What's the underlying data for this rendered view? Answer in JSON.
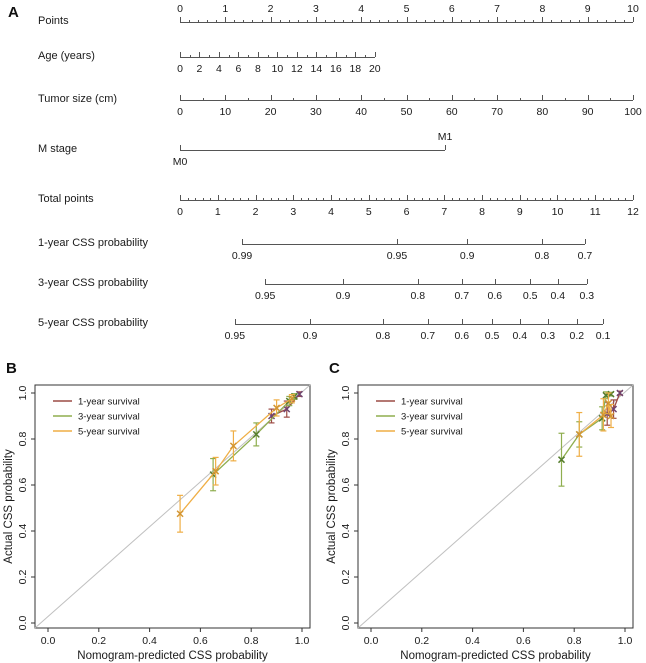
{
  "figure": {
    "panel_a_label": "A",
    "panel_b_label": "B",
    "panel_c_label": "C",
    "colors": {
      "axis": "#555555",
      "reference_line": "#c0c0c0",
      "text": "#1a1a1a"
    }
  },
  "nomogram": {
    "rows": [
      {
        "id": "points",
        "label": "Points",
        "y": 22,
        "side": "above",
        "line": [
          0,
          1
        ],
        "minor_between": 4,
        "ticks": [
          {
            "f": 0,
            "t": "0"
          },
          {
            "f": 0.1,
            "t": "1"
          },
          {
            "f": 0.2,
            "t": "2"
          },
          {
            "f": 0.3,
            "t": "3"
          },
          {
            "f": 0.4,
            "t": "4"
          },
          {
            "f": 0.5,
            "t": "5"
          },
          {
            "f": 0.6,
            "t": "6"
          },
          {
            "f": 0.7,
            "t": "7"
          },
          {
            "f": 0.8,
            "t": "8"
          },
          {
            "f": 0.9,
            "t": "9"
          },
          {
            "f": 1,
            "t": "10"
          }
        ]
      },
      {
        "id": "age",
        "label": "Age (years)",
        "y": 57,
        "side": "below",
        "line": [
          0,
          0.43
        ],
        "minor_between": 1,
        "ticks": [
          {
            "f": 0,
            "t": "0"
          },
          {
            "f": 0.043,
            "t": "2"
          },
          {
            "f": 0.086,
            "t": "4"
          },
          {
            "f": 0.129,
            "t": "6"
          },
          {
            "f": 0.172,
            "t": "8"
          },
          {
            "f": 0.215,
            "t": "10"
          },
          {
            "f": 0.258,
            "t": "12"
          },
          {
            "f": 0.301,
            "t": "14"
          },
          {
            "f": 0.344,
            "t": "16"
          },
          {
            "f": 0.387,
            "t": "18"
          },
          {
            "f": 0.43,
            "t": "20"
          }
        ]
      },
      {
        "id": "tumor-size",
        "label": "Tumor size (cm)",
        "y": 100,
        "side": "below",
        "line": [
          0,
          1
        ],
        "minor_between": 1,
        "ticks": [
          {
            "f": 0,
            "t": "0"
          },
          {
            "f": 0.1,
            "t": "10"
          },
          {
            "f": 0.2,
            "t": "20"
          },
          {
            "f": 0.3,
            "t": "30"
          },
          {
            "f": 0.4,
            "t": "40"
          },
          {
            "f": 0.5,
            "t": "50"
          },
          {
            "f": 0.6,
            "t": "60"
          },
          {
            "f": 0.7,
            "t": "70"
          },
          {
            "f": 0.8,
            "t": "80"
          },
          {
            "f": 0.9,
            "t": "90"
          },
          {
            "f": 1,
            "t": "100"
          }
        ]
      },
      {
        "id": "m-stage",
        "label": "M stage",
        "y": 150,
        "side": "below",
        "line": [
          0,
          0.585
        ],
        "minor_between": 0,
        "ticks": [
          {
            "f": 0,
            "t": "M0",
            "pos": "below"
          },
          {
            "f": 0.585,
            "t": "M1",
            "pos": "above"
          }
        ]
      },
      {
        "id": "total-points",
        "label": "Total points",
        "y": 200,
        "side": "below",
        "line": [
          0,
          1
        ],
        "minor_between": 4,
        "ticks": [
          {
            "f": 0,
            "t": "0"
          },
          {
            "f": 0.0833,
            "t": "1"
          },
          {
            "f": 0.1667,
            "t": "2"
          },
          {
            "f": 0.25,
            "t": "3"
          },
          {
            "f": 0.3333,
            "t": "4"
          },
          {
            "f": 0.4167,
            "t": "5"
          },
          {
            "f": 0.5,
            "t": "6"
          },
          {
            "f": 0.5833,
            "t": "7"
          },
          {
            "f": 0.6667,
            "t": "8"
          },
          {
            "f": 0.75,
            "t": "9"
          },
          {
            "f": 0.8333,
            "t": "10"
          },
          {
            "f": 0.9167,
            "t": "11"
          },
          {
            "f": 1,
            "t": "12"
          }
        ]
      },
      {
        "id": "css-1yr",
        "label": "1-year CSS probability",
        "y": 244,
        "side": "below",
        "line": [
          0.137,
          0.894
        ],
        "minor_between": 0,
        "ticks": [
          {
            "f": 0.137,
            "t": "0.99"
          },
          {
            "f": 0.479,
            "t": "0.95"
          },
          {
            "f": 0.634,
            "t": "0.9"
          },
          {
            "f": 0.799,
            "t": "0.8"
          },
          {
            "f": 0.894,
            "t": "0.7"
          }
        ]
      },
      {
        "id": "css-3yr",
        "label": "3-year CSS probability",
        "y": 284,
        "side": "below",
        "line": [
          0.188,
          0.898
        ],
        "minor_between": 0,
        "ticks": [
          {
            "f": 0.188,
            "t": "0.95"
          },
          {
            "f": 0.36,
            "t": "0.9"
          },
          {
            "f": 0.525,
            "t": "0.8"
          },
          {
            "f": 0.622,
            "t": "0.7"
          },
          {
            "f": 0.695,
            "t": "0.6"
          },
          {
            "f": 0.773,
            "t": "0.5"
          },
          {
            "f": 0.834,
            "t": "0.4"
          },
          {
            "f": 0.898,
            "t": "0.3"
          }
        ]
      },
      {
        "id": "css-5yr",
        "label": "5-year CSS probability",
        "y": 324,
        "side": "below",
        "line": [
          0.121,
          0.934
        ],
        "minor_between": 0,
        "ticks": [
          {
            "f": 0.121,
            "t": "0.95"
          },
          {
            "f": 0.287,
            "t": "0.9"
          },
          {
            "f": 0.448,
            "t": "0.8"
          },
          {
            "f": 0.547,
            "t": "0.7"
          },
          {
            "f": 0.622,
            "t": "0.6"
          },
          {
            "f": 0.689,
            "t": "0.5"
          },
          {
            "f": 0.75,
            "t": "0.4"
          },
          {
            "f": 0.812,
            "t": "0.3"
          },
          {
            "f": 0.876,
            "t": "0.2"
          },
          {
            "f": 0.934,
            "t": "0.1"
          }
        ]
      }
    ]
  },
  "chart_data": [
    {
      "type": "scatter",
      "panel": "B",
      "xlabel": "Nomogram-predicted CSS probability",
      "ylabel": "Actual CSS probability",
      "xlim": [
        0,
        1
      ],
      "ylim": [
        0,
        1
      ],
      "xticks": [
        0,
        0.2,
        0.4,
        0.6,
        0.8,
        1
      ],
      "yticks": [
        0,
        0.2,
        0.4,
        0.6,
        0.8,
        1
      ],
      "xtick_labels": [
        "0.0",
        "0.2",
        "0.4",
        "0.6",
        "0.8",
        "1.0"
      ],
      "ytick_labels": [
        "0.0",
        "0.2",
        "0.4",
        "0.6",
        "0.8",
        "1.0"
      ],
      "grid": false,
      "legend_position": "top-left",
      "reference_line": "y=x",
      "series": [
        {
          "name": "1-year survival",
          "color": "#9c4b45",
          "marker_color": "#6e4470",
          "points": [
            [
              0.88,
              0.9,
              0.03
            ],
            [
              0.94,
              0.93,
              0.035
            ],
            [
              0.99,
              0.995,
              0.01
            ]
          ]
        },
        {
          "name": "3-year survival",
          "color": "#8fae4f",
          "marker_color": "#567d2e",
          "points": [
            [
              0.65,
              0.645,
              0.07
            ],
            [
              0.82,
              0.82,
              0.05
            ],
            [
              0.95,
              0.965,
              0.02
            ],
            [
              0.97,
              0.985,
              0.012
            ]
          ]
        },
        {
          "name": "5-year survival",
          "color": "#efae45",
          "marker_color": "#d29533",
          "points": [
            [
              0.52,
              0.475,
              0.08
            ],
            [
              0.66,
              0.66,
              0.06
            ],
            [
              0.73,
              0.77,
              0.065
            ],
            [
              0.9,
              0.935,
              0.035
            ],
            [
              0.96,
              0.975,
              0.018
            ]
          ]
        }
      ]
    },
    {
      "type": "scatter",
      "panel": "C",
      "xlabel": "Nomogram-predicted CSS probability",
      "ylabel": "Actual CSS probability",
      "xlim": [
        0,
        1
      ],
      "ylim": [
        0,
        1
      ],
      "xticks": [
        0,
        0.2,
        0.4,
        0.6,
        0.8,
        1
      ],
      "yticks": [
        0,
        0.2,
        0.4,
        0.6,
        0.8,
        1
      ],
      "xtick_labels": [
        "0.0",
        "0.2",
        "0.4",
        "0.6",
        "0.8",
        "1.0"
      ],
      "ytick_labels": [
        "0.0",
        "0.2",
        "0.4",
        "0.6",
        "0.8",
        "1.0"
      ],
      "grid": false,
      "legend_position": "top-left",
      "reference_line": "y=x",
      "series": [
        {
          "name": "1-year survival",
          "color": "#9c4b45",
          "marker_color": "#6e4470",
          "points": [
            [
              0.93,
              0.91,
              0.05
            ],
            [
              0.955,
              0.93,
              0.04
            ],
            [
              0.98,
              1.0,
              0.008
            ]
          ]
        },
        {
          "name": "3-year survival",
          "color": "#8fae4f",
          "marker_color": "#567d2e",
          "points": [
            [
              0.75,
              0.71,
              0.115
            ],
            [
              0.82,
              0.82,
              0.055
            ],
            [
              0.91,
              0.89,
              0.05
            ],
            [
              0.925,
              0.99,
              0.015
            ],
            [
              0.945,
              0.995,
              0.008
            ]
          ]
        },
        {
          "name": "5-year survival",
          "color": "#efae45",
          "marker_color": "#d29533",
          "points": [
            [
              0.82,
              0.82,
              0.095
            ],
            [
              0.915,
              0.905,
              0.07
            ],
            [
              0.935,
              0.955,
              0.045
            ],
            [
              0.945,
              0.9,
              0.05
            ]
          ]
        }
      ]
    }
  ]
}
